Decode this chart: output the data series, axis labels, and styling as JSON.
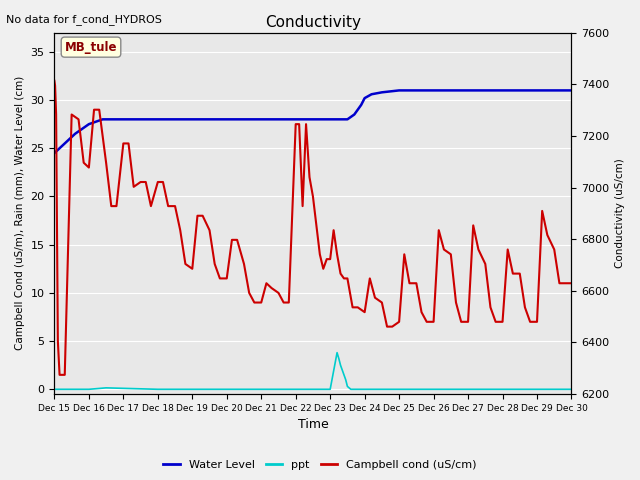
{
  "title": "Conductivity",
  "top_left_text": "No data for f_cond_HYDROS",
  "xlabel": "Time",
  "ylabel_left": "Campbell Cond (uS/m), Rain (mm), Water Level (cm)",
  "ylabel_right": "Conductivity (uS/cm)",
  "ylim_left": [
    -0.5,
    37
  ],
  "ylim_right": [
    6200,
    7600
  ],
  "bg_color": "#f0f0f0",
  "plot_bg_color": "#e8e8e8",
  "xtick_labels": [
    "Dec 15",
    "Dec 16",
    "Dec 17",
    "Dec 18",
    "Dec 19",
    "Dec 20",
    "Dec 21",
    "Dec 22",
    "Dec 23",
    "Dec 24",
    "Dec 25",
    "Dec 26",
    "Dec 27",
    "Dec 28",
    "Dec 29",
    "Dec 30"
  ],
  "yticks_left": [
    0,
    5,
    10,
    15,
    20,
    25,
    30,
    35
  ],
  "yticks_right": [
    6200,
    6400,
    6600,
    6800,
    7000,
    7200,
    7400,
    7600
  ],
  "water_level_color": "#0000cc",
  "ppt_color": "#00cccc",
  "campbell_color": "#cc0000",
  "water_level_x": [
    0,
    0.3,
    0.6,
    1.0,
    1.4,
    1.7,
    2.0,
    2.5,
    3.0,
    4.0,
    5.0,
    6.0,
    7.0,
    7.5,
    8.0,
    8.3,
    8.5,
    8.7,
    8.9,
    9.0,
    9.2,
    9.5,
    10.0,
    11.0,
    12.0,
    13.0,
    14.0,
    15.0
  ],
  "water_level_y": [
    24.5,
    25.5,
    26.5,
    27.5,
    28.0,
    28.0,
    28.0,
    28.0,
    28.0,
    28.0,
    28.0,
    28.0,
    28.0,
    28.0,
    28.0,
    28.0,
    28.0,
    28.5,
    29.5,
    30.2,
    30.6,
    30.8,
    31.0,
    31.0,
    31.0,
    31.0,
    31.0,
    31.0
  ],
  "ppt_x": [
    0,
    1.0,
    1.5,
    2.0,
    3.0,
    4.0,
    5.0,
    6.0,
    7.0,
    8.0,
    8.2,
    8.25,
    8.3,
    8.35,
    8.4,
    8.45,
    8.5,
    8.6,
    9.0,
    10.0,
    11.0,
    12.0,
    13.0,
    14.0,
    15.0
  ],
  "ppt_y": [
    0,
    0,
    0.15,
    0.1,
    0,
    0,
    0,
    0,
    0,
    0,
    3.8,
    3.2,
    2.5,
    2.0,
    1.5,
    1.0,
    0.3,
    0,
    0,
    0,
    0,
    0,
    0,
    0,
    0
  ],
  "campbell_x": [
    0.0,
    0.02,
    0.05,
    0.1,
    0.15,
    0.3,
    0.5,
    0.7,
    0.85,
    1.0,
    1.15,
    1.3,
    1.5,
    1.65,
    1.8,
    2.0,
    2.15,
    2.3,
    2.5,
    2.65,
    2.8,
    3.0,
    3.15,
    3.3,
    3.5,
    3.65,
    3.8,
    4.0,
    4.15,
    4.3,
    4.5,
    4.65,
    4.8,
    5.0,
    5.15,
    5.3,
    5.5,
    5.65,
    5.8,
    6.0,
    6.15,
    6.3,
    6.5,
    6.65,
    6.8,
    7.0,
    7.1,
    7.2,
    7.3,
    7.4,
    7.5,
    7.6,
    7.7,
    7.8,
    7.9,
    8.0,
    8.1,
    8.2,
    8.3,
    8.4,
    8.5,
    8.65,
    8.8,
    9.0,
    9.15,
    9.3,
    9.5,
    9.65,
    9.8,
    10.0,
    10.15,
    10.3,
    10.5,
    10.65,
    10.8,
    11.0,
    11.15,
    11.3,
    11.5,
    11.65,
    11.8,
    12.0,
    12.15,
    12.3,
    12.5,
    12.65,
    12.8,
    13.0,
    13.15,
    13.3,
    13.5,
    13.65,
    13.8,
    14.0,
    14.15,
    14.3,
    14.5,
    14.65,
    14.8,
    15.0
  ],
  "campbell_y": [
    32.0,
    31.5,
    28.5,
    5.0,
    1.5,
    1.5,
    28.5,
    28.0,
    23.5,
    23.0,
    29.0,
    29.0,
    23.5,
    19.0,
    19.0,
    25.5,
    25.5,
    21.0,
    21.5,
    21.5,
    19.0,
    21.5,
    21.5,
    19.0,
    19.0,
    16.5,
    13.0,
    12.5,
    18.0,
    18.0,
    16.5,
    13.0,
    11.5,
    11.5,
    15.5,
    15.5,
    13.0,
    10.0,
    9.0,
    9.0,
    11.0,
    10.5,
    10.0,
    9.0,
    9.0,
    27.5,
    27.5,
    19.0,
    27.5,
    22.0,
    20.0,
    17.0,
    14.0,
    12.5,
    13.5,
    13.5,
    16.5,
    14.0,
    12.0,
    11.5,
    11.5,
    8.5,
    8.5,
    8.0,
    11.5,
    9.5,
    9.0,
    6.5,
    6.5,
    7.0,
    14.0,
    11.0,
    11.0,
    8.0,
    7.0,
    7.0,
    16.5,
    14.5,
    14.0,
    9.0,
    7.0,
    7.0,
    17.0,
    14.5,
    13.0,
    8.5,
    7.0,
    7.0,
    14.5,
    12.0,
    12.0,
    8.5,
    7.0,
    7.0,
    18.5,
    16.0,
    14.5,
    11.0,
    11.0,
    11.0
  ]
}
